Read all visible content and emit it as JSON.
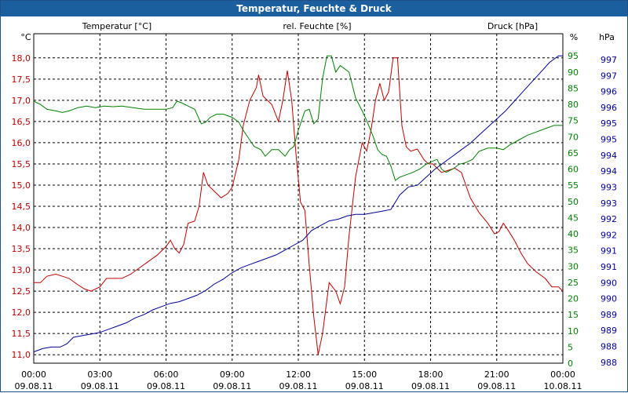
{
  "window": {
    "title": "Temperatur, Feuchte & Druck"
  },
  "colors": {
    "temperature": "#c00000",
    "humidity": "#008000",
    "pressure": "#00009c",
    "grid": "#000000",
    "title_bg": "#1c5f9f"
  },
  "chart_data": {
    "type": "line",
    "title": "Temperatur, Feuchte & Druck",
    "legend": {
      "temperature": "Temperatur [°C]",
      "humidity": "rel. Feuchte [%]",
      "pressure": "Druck [hPa]"
    },
    "axes": {
      "left": {
        "unit": "°C",
        "range": [
          10.8,
          18.2
        ],
        "ticks": [
          "11,0",
          "11,5",
          "12,0",
          "12,5",
          "13,0",
          "13,5",
          "14,0",
          "14,5",
          "15,0",
          "15,5",
          "16,0",
          "16,5",
          "17,0",
          "17,5",
          "18,0"
        ]
      },
      "humidity": {
        "unit": "%",
        "range": [
          0,
          97
        ],
        "ticks": [
          "0",
          "5",
          "10",
          "15",
          "20",
          "25",
          "30",
          "35",
          "40",
          "45",
          "50",
          "55",
          "60",
          "65",
          "70",
          "75",
          "80",
          "85",
          "90",
          "95"
        ]
      },
      "pressure": {
        "unit": "hPa",
        "ticks": [
          "997",
          "997",
          "996",
          "996",
          "995",
          "995",
          "994",
          "994",
          "993",
          "993",
          "992",
          "992",
          "991",
          "991",
          "990",
          "990",
          "989",
          "989",
          "988",
          "988"
        ]
      }
    },
    "x_ticks": [
      {
        "time": "00:00",
        "date": "09.08.11"
      },
      {
        "time": "03:00",
        "date": "09.08.11"
      },
      {
        "time": "06:00",
        "date": "09.08.11"
      },
      {
        "time": "09:00",
        "date": "09.08.11"
      },
      {
        "time": "12:00",
        "date": "09.08.11"
      },
      {
        "time": "15:00",
        "date": "09.08.11"
      },
      {
        "time": "18:00",
        "date": "09.08.11"
      },
      {
        "time": "21:00",
        "date": "09.08.11"
      },
      {
        "time": "00:00",
        "date": "10.08.11"
      }
    ],
    "x_range_hours": [
      0,
      24
    ],
    "series": [
      {
        "name": "Temperatur [°C]",
        "axis": "left",
        "color": "#c00000",
        "points": [
          [
            0,
            12.7
          ],
          [
            0.3,
            12.7
          ],
          [
            0.6,
            12.85
          ],
          [
            1,
            12.9
          ],
          [
            1.3,
            12.85
          ],
          [
            1.6,
            12.8
          ],
          [
            2,
            12.65
          ],
          [
            2.3,
            12.55
          ],
          [
            2.6,
            12.5
          ],
          [
            3,
            12.6
          ],
          [
            3.3,
            12.8
          ],
          [
            3.6,
            12.8
          ],
          [
            4,
            12.8
          ],
          [
            4.4,
            12.9
          ],
          [
            4.8,
            13.05
          ],
          [
            5.2,
            13.2
          ],
          [
            5.6,
            13.35
          ],
          [
            6,
            13.55
          ],
          [
            6.2,
            13.7
          ],
          [
            6.4,
            13.5
          ],
          [
            6.6,
            13.4
          ],
          [
            6.8,
            13.6
          ],
          [
            7,
            14.1
          ],
          [
            7.3,
            14.15
          ],
          [
            7.5,
            14.5
          ],
          [
            7.7,
            15.3
          ],
          [
            7.9,
            15.0
          ],
          [
            8.2,
            14.85
          ],
          [
            8.5,
            14.7
          ],
          [
            8.8,
            14.8
          ],
          [
            9,
            14.95
          ],
          [
            9.3,
            15.6
          ],
          [
            9.5,
            16.4
          ],
          [
            9.8,
            17.0
          ],
          [
            10.1,
            17.3
          ],
          [
            10.2,
            17.6
          ],
          [
            10.4,
            17.1
          ],
          [
            10.8,
            16.9
          ],
          [
            11.1,
            16.5
          ],
          [
            11.3,
            17.0
          ],
          [
            11.5,
            17.7
          ],
          [
            11.7,
            17.0
          ],
          [
            11.9,
            15.7
          ],
          [
            12.1,
            14.6
          ],
          [
            12.3,
            14.4
          ],
          [
            12.5,
            13.1
          ],
          [
            12.7,
            11.9
          ],
          [
            12.9,
            11.0
          ],
          [
            13.1,
            11.5
          ],
          [
            13.4,
            12.7
          ],
          [
            13.7,
            12.5
          ],
          [
            13.9,
            12.2
          ],
          [
            14.1,
            12.6
          ],
          [
            14.3,
            13.8
          ],
          [
            14.6,
            15.2
          ],
          [
            14.9,
            16.0
          ],
          [
            15.1,
            15.8
          ],
          [
            15.3,
            16.3
          ],
          [
            15.5,
            17.0
          ],
          [
            15.7,
            17.4
          ],
          [
            15.9,
            17.0
          ],
          [
            16.1,
            17.2
          ],
          [
            16.3,
            18.0
          ],
          [
            16.5,
            18.0
          ],
          [
            16.7,
            16.4
          ],
          [
            16.9,
            15.9
          ],
          [
            17.1,
            15.8
          ],
          [
            17.4,
            15.85
          ],
          [
            17.7,
            15.6
          ],
          [
            17.9,
            15.5
          ],
          [
            18.1,
            15.5
          ],
          [
            18.3,
            15.4
          ],
          [
            18.5,
            15.3
          ],
          [
            18.8,
            15.35
          ],
          [
            19.1,
            15.4
          ],
          [
            19.4,
            15.3
          ],
          [
            19.6,
            15.0
          ],
          [
            19.8,
            14.7
          ],
          [
            20.2,
            14.35
          ],
          [
            20.6,
            14.1
          ],
          [
            20.9,
            13.85
          ],
          [
            21.1,
            13.9
          ],
          [
            21.3,
            14.1
          ],
          [
            21.5,
            13.95
          ],
          [
            21.8,
            13.7
          ],
          [
            22.1,
            13.4
          ],
          [
            22.4,
            13.15
          ],
          [
            22.8,
            12.95
          ],
          [
            23.2,
            12.8
          ],
          [
            23.5,
            12.6
          ],
          [
            23.8,
            12.6
          ],
          [
            24,
            12.5
          ]
        ]
      },
      {
        "name": "rel. Feuchte [%]",
        "axis": "humidity",
        "color": "#008000",
        "points": [
          [
            0,
            81
          ],
          [
            0.3,
            80
          ],
          [
            0.6,
            78.5
          ],
          [
            1,
            78
          ],
          [
            1.3,
            77.5
          ],
          [
            1.6,
            78
          ],
          [
            2,
            79
          ],
          [
            2.4,
            79.5
          ],
          [
            2.8,
            79
          ],
          [
            3.2,
            79.5
          ],
          [
            3.6,
            79.3
          ],
          [
            4,
            79.5
          ],
          [
            4.5,
            79
          ],
          [
            5,
            78.5
          ],
          [
            5.5,
            78.5
          ],
          [
            6,
            78.5
          ],
          [
            6.3,
            79
          ],
          [
            6.5,
            81
          ],
          [
            6.7,
            80.5
          ],
          [
            7,
            79.5
          ],
          [
            7.3,
            78.5
          ],
          [
            7.6,
            74
          ],
          [
            7.8,
            74.5
          ],
          [
            8,
            76
          ],
          [
            8.3,
            77
          ],
          [
            8.6,
            77
          ],
          [
            9,
            76
          ],
          [
            9.3,
            74.5
          ],
          [
            9.5,
            72
          ],
          [
            9.8,
            69
          ],
          [
            10,
            67
          ],
          [
            10.3,
            66
          ],
          [
            10.5,
            64
          ],
          [
            10.8,
            66
          ],
          [
            11.1,
            66
          ],
          [
            11.4,
            64
          ],
          [
            11.6,
            66
          ],
          [
            11.8,
            67
          ],
          [
            12,
            72
          ],
          [
            12.3,
            78
          ],
          [
            12.5,
            78.5
          ],
          [
            12.7,
            74
          ],
          [
            12.9,
            75.5
          ],
          [
            13.1,
            88
          ],
          [
            13.3,
            95
          ],
          [
            13.5,
            95
          ],
          [
            13.7,
            90
          ],
          [
            13.9,
            92
          ],
          [
            14.1,
            91
          ],
          [
            14.3,
            90
          ],
          [
            14.6,
            82
          ],
          [
            14.9,
            78
          ],
          [
            15.1,
            75
          ],
          [
            15.4,
            70
          ],
          [
            15.6,
            66
          ],
          [
            15.8,
            64.5
          ],
          [
            16,
            64
          ],
          [
            16.2,
            61
          ],
          [
            16.4,
            56.5
          ],
          [
            16.6,
            57.5
          ],
          [
            16.8,
            58
          ],
          [
            17.2,
            59
          ],
          [
            17.5,
            60
          ],
          [
            17.8,
            61.5
          ],
          [
            18.1,
            62.5
          ],
          [
            18.3,
            63
          ],
          [
            18.5,
            60
          ],
          [
            18.7,
            59
          ],
          [
            19,
            60
          ],
          [
            19.3,
            61.5
          ],
          [
            19.6,
            62
          ],
          [
            19.9,
            63
          ],
          [
            20.2,
            65.5
          ],
          [
            20.6,
            66.5
          ],
          [
            21,
            66.5
          ],
          [
            21.3,
            66
          ],
          [
            21.6,
            67.5
          ],
          [
            22,
            69
          ],
          [
            22.4,
            70.5
          ],
          [
            22.8,
            71.5
          ],
          [
            23.2,
            72.5
          ],
          [
            23.6,
            73.5
          ],
          [
            24,
            73.5
          ]
        ]
      },
      {
        "name": "Druck [hPa]",
        "axis": "humidity",
        "color": "#00009c",
        "points": [
          [
            0,
            3.5
          ],
          [
            0.4,
            4.5
          ],
          [
            0.8,
            5
          ],
          [
            1.2,
            5
          ],
          [
            1.5,
            6
          ],
          [
            1.8,
            8
          ],
          [
            2.2,
            8.5
          ],
          [
            2.6,
            9
          ],
          [
            3,
            9.5
          ],
          [
            3.4,
            10.5
          ],
          [
            3.8,
            11.5
          ],
          [
            4.2,
            12.5
          ],
          [
            4.6,
            14
          ],
          [
            5,
            15
          ],
          [
            5.4,
            16.5
          ],
          [
            5.8,
            17.5
          ],
          [
            6.2,
            18.5
          ],
          [
            6.6,
            19
          ],
          [
            7,
            20
          ],
          [
            7.4,
            21
          ],
          [
            7.8,
            22.5
          ],
          [
            8.2,
            24.5
          ],
          [
            8.6,
            26
          ],
          [
            9,
            28
          ],
          [
            9.4,
            29.5
          ],
          [
            9.8,
            30.5
          ],
          [
            10.2,
            31.5
          ],
          [
            10.6,
            32.5
          ],
          [
            11,
            33.5
          ],
          [
            11.4,
            35
          ],
          [
            11.8,
            36.5
          ],
          [
            12.2,
            38
          ],
          [
            12.6,
            41
          ],
          [
            13,
            42.5
          ],
          [
            13.4,
            44
          ],
          [
            13.8,
            44.5
          ],
          [
            14.2,
            45.5
          ],
          [
            14.6,
            46
          ],
          [
            15,
            46
          ],
          [
            15.4,
            46.5
          ],
          [
            15.8,
            47
          ],
          [
            16.2,
            47.5
          ],
          [
            16.6,
            52
          ],
          [
            17,
            54.5
          ],
          [
            17.4,
            55
          ],
          [
            17.8,
            57.5
          ],
          [
            18.2,
            60
          ],
          [
            18.6,
            62
          ],
          [
            19,
            64
          ],
          [
            19.4,
            66
          ],
          [
            19.8,
            68
          ],
          [
            20.2,
            70.5
          ],
          [
            20.6,
            73
          ],
          [
            21,
            75.5
          ],
          [
            21.4,
            78
          ],
          [
            21.8,
            81
          ],
          [
            22.2,
            84
          ],
          [
            22.6,
            87
          ],
          [
            23,
            90
          ],
          [
            23.4,
            93
          ],
          [
            23.8,
            95
          ],
          [
            24,
            95
          ]
        ]
      }
    ]
  }
}
